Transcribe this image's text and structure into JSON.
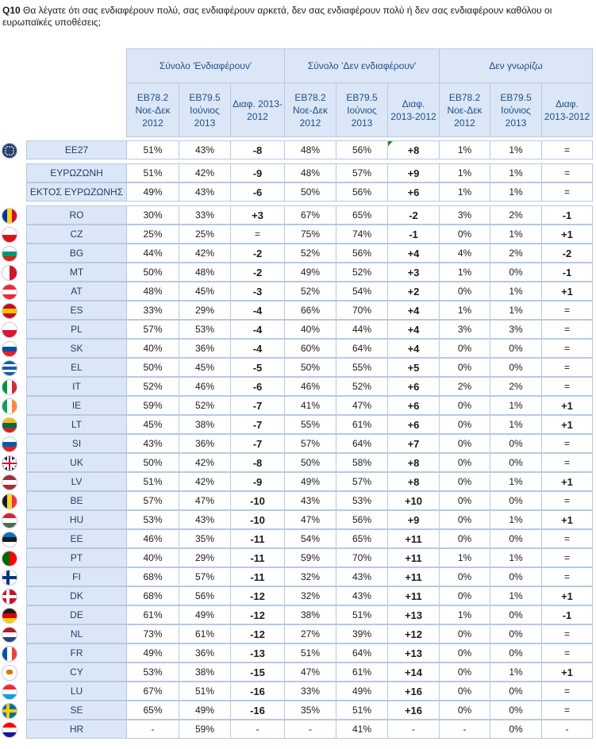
{
  "question": {
    "code": "Q10",
    "text": " Θα λέγατε ότι σας ενδιαφέρουν πολύ, σας ενδιαφέρουν αρκετά, δεν σας ενδιαφέρουν πολύ ή δεν σας ενδιαφέρουν καθόλου οι ευρωπαϊκές υποθέσεις;"
  },
  "headers": {
    "groups": [
      "Σύνολο 'Ενδιαφέρουν'",
      "Σύνολο 'Δεν ενδιαφέρουν'",
      "Δεν γνωρίζω"
    ],
    "sub": [
      "EB78.2 Νοε-Δεκ 2012",
      "EB79.5 Ιούνιος 2013",
      "Διαφ. 2013-2012",
      "EB78.2 Νοε-Δεκ 2012",
      "EB79.5 Ιούνιος 2013",
      "Διαφ. 2013-2012",
      "EB78.2 Νοε-Δεκ 2012",
      "EB79.5 Ιούνιος 2013",
      "Διαφ. 2013-2012"
    ]
  },
  "colors": {
    "header_bg": "#dbe7f7",
    "border": "#b7c9e3",
    "header_text": "#1f4e8c"
  },
  "rows": [
    {
      "name": "EE27",
      "flag": "eu",
      "v": [
        "51%",
        "43%",
        "-8",
        "48%",
        "56%",
        "+8",
        "1%",
        "1%",
        "="
      ]
    },
    {
      "name": "ΕΥΡΩΖΩΝΗ",
      "flag": "",
      "v": [
        "51%",
        "42%",
        "-9",
        "48%",
        "57%",
        "+9",
        "1%",
        "1%",
        "="
      ]
    },
    {
      "name": "ΕΚΤΟΣ ΕΥΡΩΖΩΝΗΣ",
      "flag": "",
      "v": [
        "49%",
        "43%",
        "-6",
        "50%",
        "56%",
        "+6",
        "1%",
        "1%",
        "="
      ]
    },
    {
      "name": "RO",
      "flag": "ro",
      "v": [
        "30%",
        "33%",
        "+3",
        "67%",
        "65%",
        "-2",
        "3%",
        "2%",
        "-1"
      ]
    },
    {
      "name": "CZ",
      "flag": "cz",
      "v": [
        "25%",
        "25%",
        "=",
        "75%",
        "74%",
        "-1",
        "0%",
        "1%",
        "+1"
      ]
    },
    {
      "name": "BG",
      "flag": "bg",
      "v": [
        "44%",
        "42%",
        "-2",
        "52%",
        "56%",
        "+4",
        "4%",
        "2%",
        "-2"
      ]
    },
    {
      "name": "MT",
      "flag": "mt",
      "v": [
        "50%",
        "48%",
        "-2",
        "49%",
        "52%",
        "+3",
        "1%",
        "0%",
        "-1"
      ]
    },
    {
      "name": "AT",
      "flag": "at",
      "v": [
        "48%",
        "45%",
        "-3",
        "52%",
        "54%",
        "+2",
        "0%",
        "1%",
        "+1"
      ]
    },
    {
      "name": "ES",
      "flag": "es",
      "v": [
        "33%",
        "29%",
        "-4",
        "66%",
        "70%",
        "+4",
        "1%",
        "1%",
        "="
      ]
    },
    {
      "name": "PL",
      "flag": "pl",
      "v": [
        "57%",
        "53%",
        "-4",
        "40%",
        "44%",
        "+4",
        "3%",
        "3%",
        "="
      ]
    },
    {
      "name": "SK",
      "flag": "sk",
      "v": [
        "40%",
        "36%",
        "-4",
        "60%",
        "64%",
        "+4",
        "0%",
        "0%",
        "="
      ]
    },
    {
      "name": "EL",
      "flag": "gr",
      "v": [
        "50%",
        "45%",
        "-5",
        "50%",
        "55%",
        "+5",
        "0%",
        "0%",
        "="
      ]
    },
    {
      "name": "IT",
      "flag": "it",
      "v": [
        "52%",
        "46%",
        "-6",
        "46%",
        "52%",
        "+6",
        "2%",
        "2%",
        "="
      ]
    },
    {
      "name": "IE",
      "flag": "ie",
      "v": [
        "59%",
        "52%",
        "-7",
        "41%",
        "47%",
        "+6",
        "0%",
        "1%",
        "+1"
      ]
    },
    {
      "name": "LT",
      "flag": "lt",
      "v": [
        "45%",
        "38%",
        "-7",
        "55%",
        "61%",
        "+6",
        "0%",
        "1%",
        "+1"
      ]
    },
    {
      "name": "SI",
      "flag": "si",
      "v": [
        "43%",
        "36%",
        "-7",
        "57%",
        "64%",
        "+7",
        "0%",
        "0%",
        "="
      ]
    },
    {
      "name": "UK",
      "flag": "uk",
      "v": [
        "50%",
        "42%",
        "-8",
        "50%",
        "58%",
        "+8",
        "0%",
        "0%",
        "="
      ]
    },
    {
      "name": "LV",
      "flag": "lv",
      "v": [
        "51%",
        "42%",
        "-9",
        "49%",
        "57%",
        "+8",
        "0%",
        "1%",
        "+1"
      ]
    },
    {
      "name": "BE",
      "flag": "be",
      "v": [
        "57%",
        "47%",
        "-10",
        "43%",
        "53%",
        "+10",
        "0%",
        "0%",
        "="
      ]
    },
    {
      "name": "HU",
      "flag": "hu",
      "v": [
        "53%",
        "43%",
        "-10",
        "47%",
        "56%",
        "+9",
        "0%",
        "1%",
        "+1"
      ]
    },
    {
      "name": "EE",
      "flag": "ee",
      "v": [
        "46%",
        "35%",
        "-11",
        "54%",
        "65%",
        "+11",
        "0%",
        "0%",
        "="
      ]
    },
    {
      "name": "PT",
      "flag": "pt",
      "v": [
        "40%",
        "29%",
        "-11",
        "59%",
        "70%",
        "+11",
        "1%",
        "1%",
        "="
      ]
    },
    {
      "name": "FI",
      "flag": "fi",
      "v": [
        "68%",
        "57%",
        "-11",
        "32%",
        "43%",
        "+11",
        "0%",
        "0%",
        "="
      ]
    },
    {
      "name": "DK",
      "flag": "dk",
      "v": [
        "68%",
        "56%",
        "-12",
        "32%",
        "43%",
        "+11",
        "0%",
        "1%",
        "+1"
      ]
    },
    {
      "name": "DE",
      "flag": "de",
      "v": [
        "61%",
        "49%",
        "-12",
        "38%",
        "51%",
        "+13",
        "1%",
        "0%",
        "-1"
      ]
    },
    {
      "name": "NL",
      "flag": "nl",
      "v": [
        "73%",
        "61%",
        "-12",
        "27%",
        "39%",
        "+12",
        "0%",
        "0%",
        "="
      ]
    },
    {
      "name": "FR",
      "flag": "fr",
      "v": [
        "49%",
        "36%",
        "-13",
        "51%",
        "64%",
        "+13",
        "0%",
        "0%",
        "="
      ]
    },
    {
      "name": "CY",
      "flag": "cy",
      "v": [
        "53%",
        "38%",
        "-15",
        "47%",
        "61%",
        "+14",
        "0%",
        "1%",
        "+1"
      ]
    },
    {
      "name": "LU",
      "flag": "lu",
      "v": [
        "67%",
        "51%",
        "-16",
        "33%",
        "49%",
        "+16",
        "0%",
        "0%",
        "="
      ]
    },
    {
      "name": "SE",
      "flag": "se",
      "v": [
        "65%",
        "49%",
        "-16",
        "35%",
        "51%",
        "+16",
        "0%",
        "0%",
        "="
      ]
    },
    {
      "name": "HR",
      "flag": "hr",
      "v": [
        "-",
        "59%",
        "-",
        "-",
        "41%",
        "-",
        "-",
        "0%",
        "-"
      ]
    }
  ]
}
